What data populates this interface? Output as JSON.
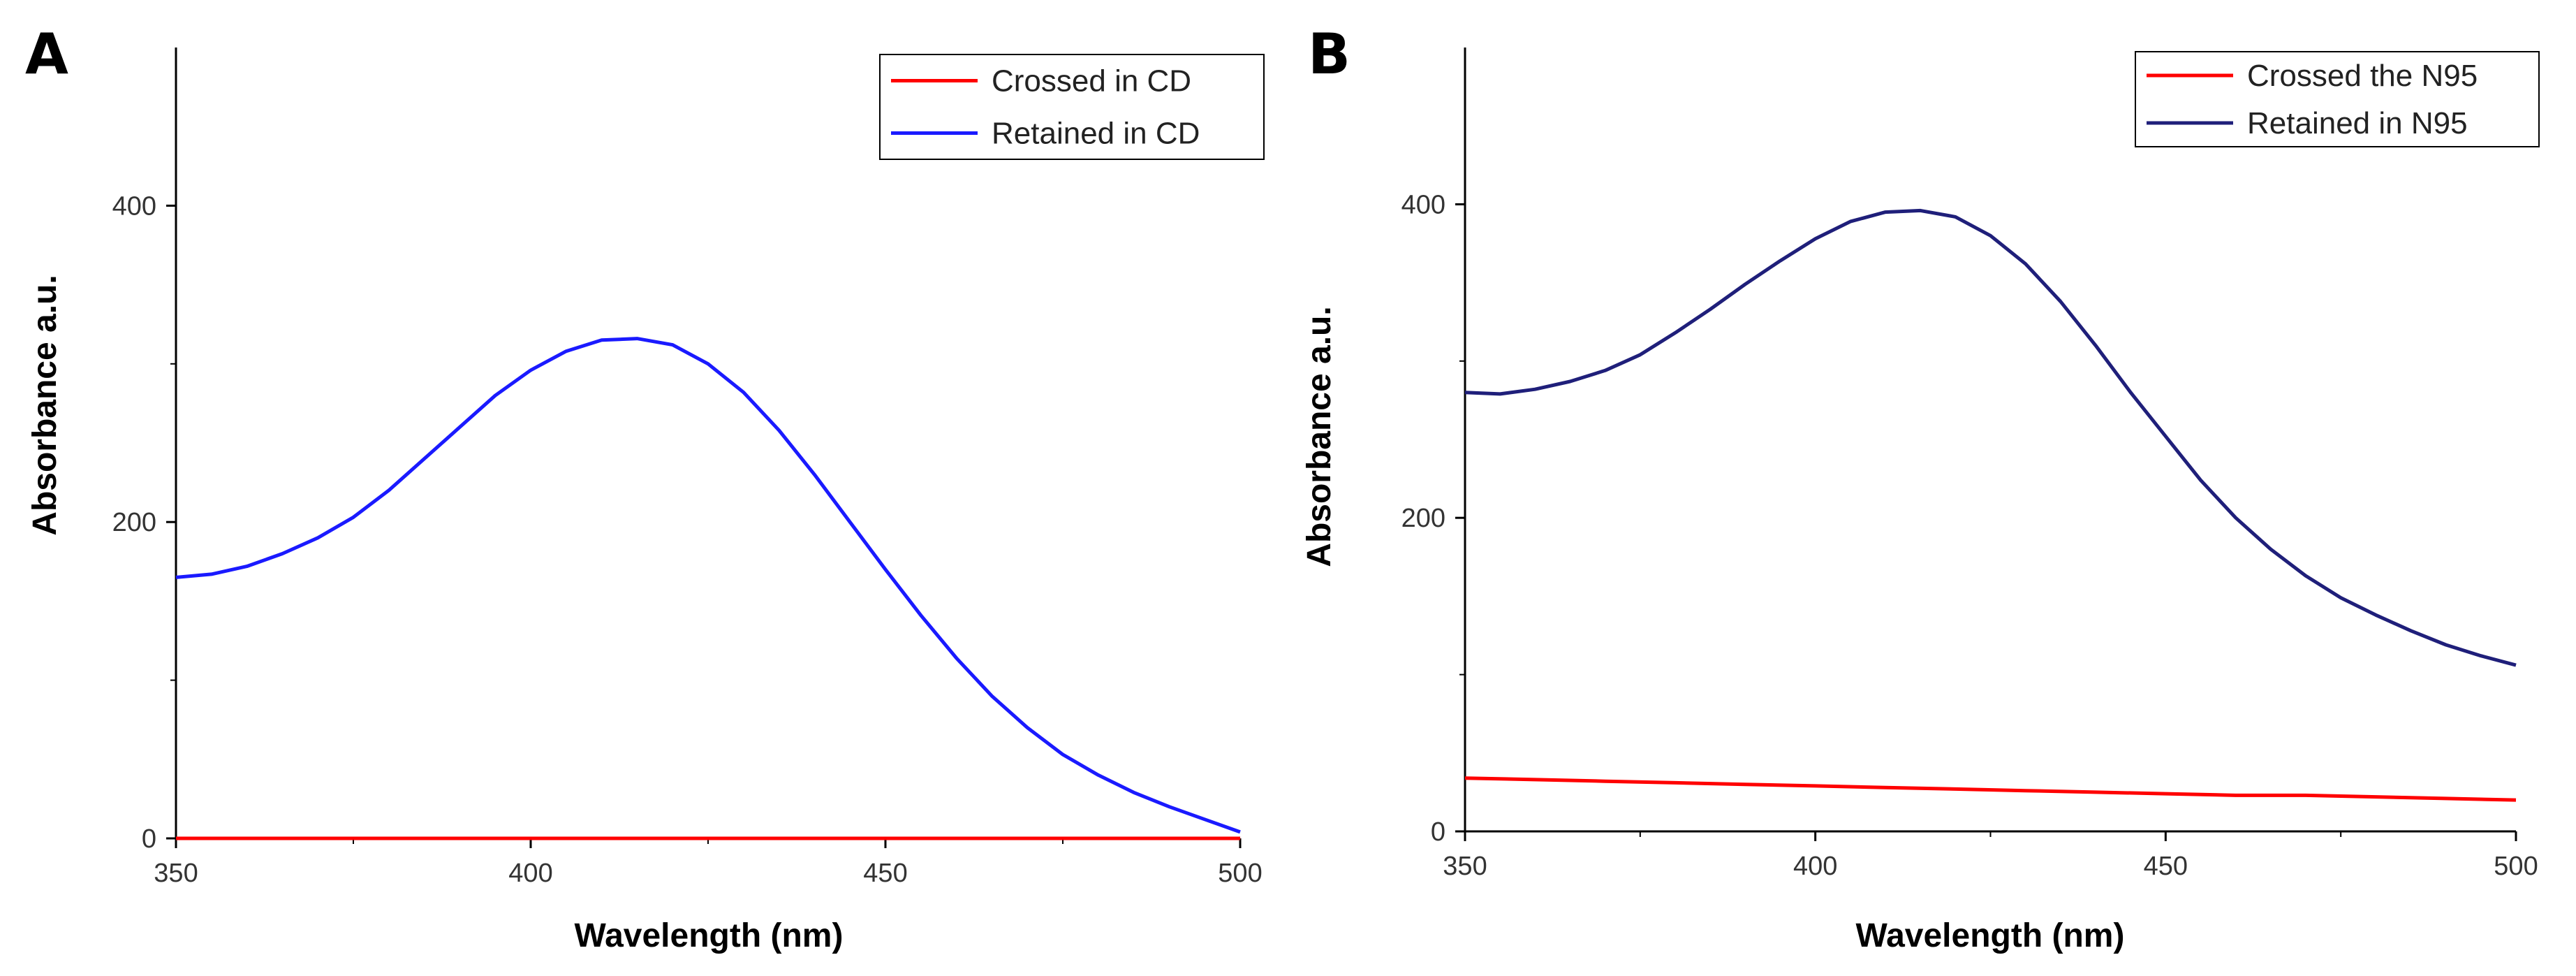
{
  "chart_data": [
    {
      "panel": "A",
      "type": "line",
      "title": "",
      "xlabel": "Wavelength (nm)",
      "ylabel": "Absorbance a.u.",
      "xlim": [
        350,
        500
      ],
      "ylim": [
        0,
        500
      ],
      "xticks": [
        350,
        400,
        450,
        500
      ],
      "yticks": [
        0,
        200,
        400
      ],
      "legend_position": "top-right",
      "series": [
        {
          "name": "Crossed in CD",
          "color": "#ff0000",
          "x": [
            350,
            500
          ],
          "y": [
            0,
            0
          ]
        },
        {
          "name": "Retained in CD",
          "color": "#1a1aff",
          "x": [
            350,
            355,
            360,
            365,
            370,
            375,
            380,
            385,
            390,
            395,
            400,
            405,
            410,
            415,
            420,
            425,
            430,
            435,
            440,
            445,
            450,
            455,
            460,
            465,
            470,
            475,
            480,
            485,
            490,
            495,
            500
          ],
          "y": [
            165,
            167,
            172,
            180,
            190,
            203,
            220,
            240,
            260,
            280,
            296,
            308,
            315,
            316,
            312,
            300,
            282,
            258,
            230,
            200,
            170,
            141,
            114,
            90,
            70,
            53,
            40,
            29,
            20,
            12,
            4
          ]
        }
      ]
    },
    {
      "panel": "B",
      "type": "line",
      "title": "",
      "xlabel": "Wavelength (nm)",
      "ylabel": "Absorbance a.u.",
      "xlim": [
        350,
        500
      ],
      "ylim": [
        0,
        500
      ],
      "xticks": [
        350,
        400,
        450,
        500
      ],
      "yticks": [
        0,
        200,
        400
      ],
      "legend_position": "top-right",
      "series": [
        {
          "name": "Crossed the N95",
          "color": "#ff0000",
          "x": [
            350,
            360,
            370,
            380,
            390,
            400,
            410,
            420,
            430,
            440,
            450,
            460,
            470,
            480,
            490,
            500
          ],
          "y": [
            34,
            33,
            32,
            31,
            30,
            29,
            28,
            27,
            26,
            25,
            24,
            23,
            23,
            22,
            21,
            20
          ]
        },
        {
          "name": "Retained in N95",
          "color": "#1f1f7a",
          "x": [
            350,
            355,
            360,
            365,
            370,
            375,
            380,
            385,
            390,
            395,
            400,
            405,
            410,
            415,
            420,
            425,
            430,
            435,
            440,
            445,
            450,
            455,
            460,
            465,
            470,
            475,
            480,
            485,
            490,
            495,
            500
          ],
          "y": [
            280,
            279,
            282,
            287,
            294,
            304,
            318,
            333,
            349,
            364,
            378,
            389,
            395,
            396,
            392,
            380,
            362,
            338,
            310,
            280,
            252,
            224,
            200,
            180,
            163,
            149,
            138,
            128,
            119,
            112,
            106
          ]
        }
      ]
    }
  ]
}
